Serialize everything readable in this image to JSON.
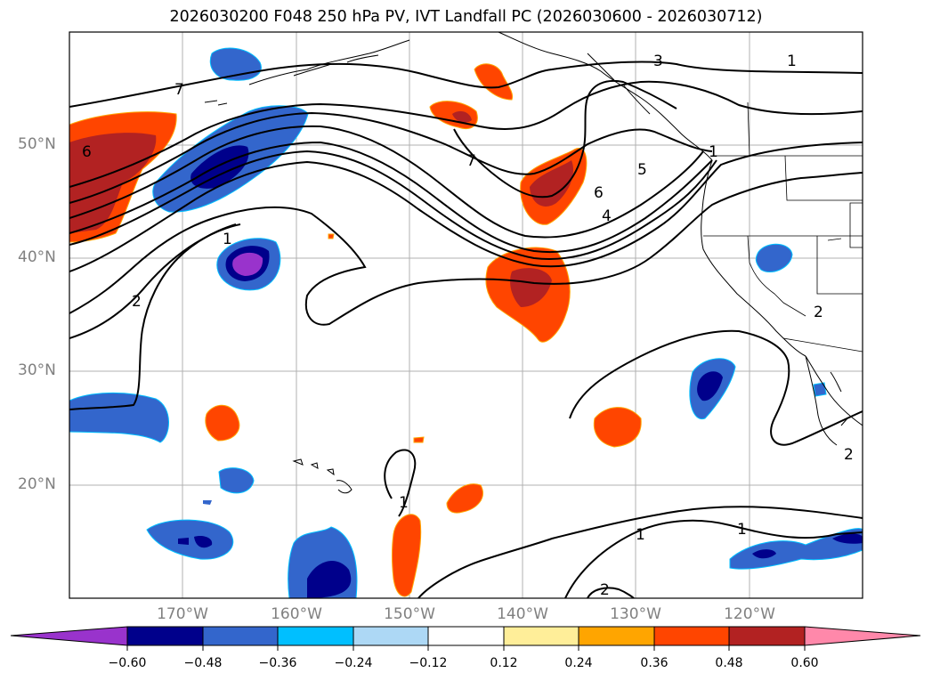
{
  "title": "2026030200 F048 250 hPa PV, IVT Landfall PC (2026030600 - 2026030712)",
  "lat_labels": [
    "50°N",
    "40°N",
    "30°N",
    "20°N"
  ],
  "lon_labels": [
    "170°W",
    "160°W",
    "150°W",
    "140°W",
    "130°W",
    "120°W"
  ],
  "contour_labels": [
    "7",
    "6",
    "3",
    "1",
    "4",
    "5",
    "6",
    "7",
    "1",
    "2",
    "2",
    "1",
    "1",
    "1",
    "2",
    "2",
    "1"
  ],
  "colorbar": {
    "colors": [
      "#9933cc",
      "#00008b",
      "#3366cc",
      "#00bfff",
      "#add8f5",
      "#ffffff",
      "#ffee99",
      "#ffa500",
      "#ff4500",
      "#b22222",
      "#ff88aa"
    ],
    "tick_labels": [
      "−0.60",
      "−0.48",
      "−0.36",
      "−0.24",
      "−0.12",
      "0.12",
      "0.24",
      "0.36",
      "0.48",
      "0.60"
    ]
  }
}
